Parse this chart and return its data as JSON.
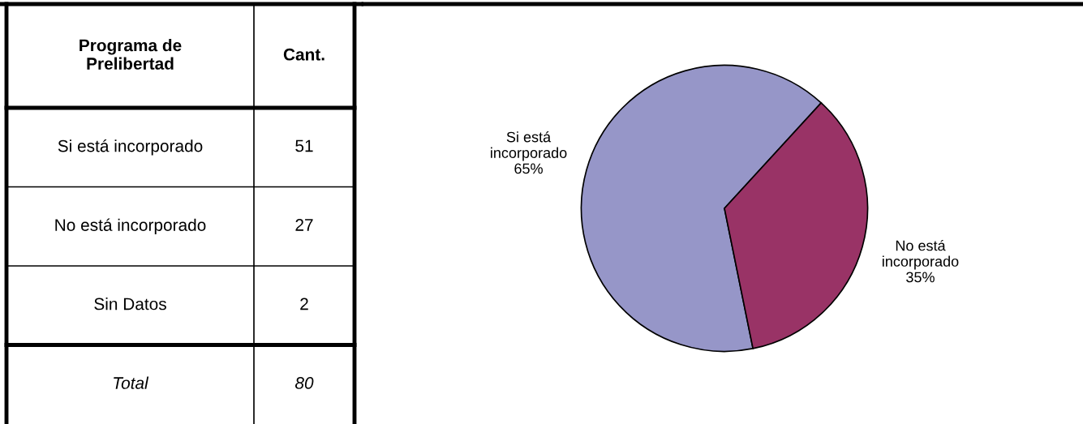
{
  "chart_data": [
    {
      "type": "other",
      "annotations": [
        "Programa de Prelibertad",
        "Cant."
      ],
      "categories": [
        "Si está incorporado",
        "No está incorporado",
        "Sin Datos",
        "Total"
      ],
      "values": [
        51,
        27,
        2,
        80
      ],
      "data_labels": true
    },
    {
      "type": "pie",
      "categories": [
        "Si está incorporado",
        "No está incorporado"
      ],
      "values": [
        65,
        35
      ],
      "colors": [
        "#9696c8",
        "#993366"
      ],
      "value_labels": [
        "65%",
        "35%"
      ]
    }
  ]
}
